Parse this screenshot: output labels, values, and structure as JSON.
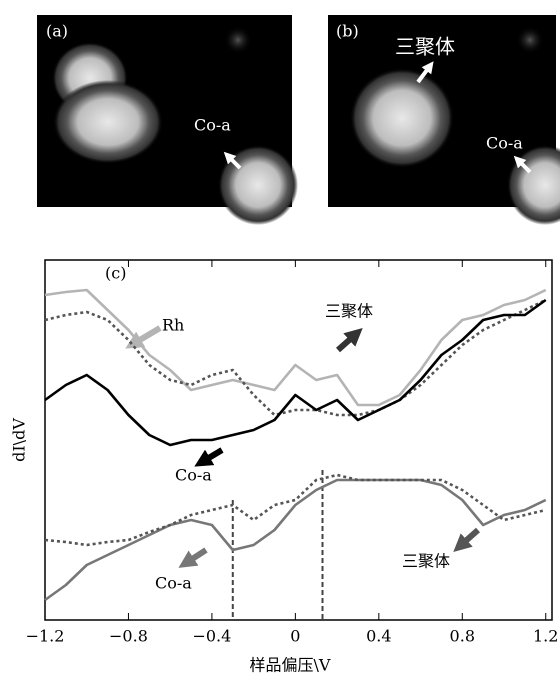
{
  "images": [
    {
      "label": "(a)",
      "texts": [
        "Co-a"
      ]
    },
    {
      "label": "(b)",
      "texts": [
        "三聚体",
        "Co-a"
      ]
    }
  ],
  "chart_data": {
    "type": "line",
    "label": "(c)",
    "xlabel": "样品偏压\\V",
    "ylabel": "dI\\dV",
    "x": [
      -1.2,
      -1.1,
      -1.0,
      -0.9,
      -0.8,
      -0.7,
      -0.6,
      -0.5,
      -0.4,
      -0.3,
      -0.2,
      -0.1,
      0,
      0.1,
      0.2,
      0.3,
      0.4,
      0.5,
      0.6,
      0.7,
      0.8,
      0.9,
      1.0,
      1.1,
      1.2
    ],
    "xlim": [
      -1.2,
      1.23
    ],
    "ylim": [
      0,
      360
    ],
    "xticks": [
      {
        "value": -1.2,
        "label": "−1.2"
      },
      {
        "value": -0.8,
        "label": "−0.8"
      },
      {
        "value": -0.4,
        "label": "−0.4"
      },
      0,
      0.4,
      0.8,
      1.2
    ],
    "markers": [
      -0.3,
      0.13
    ],
    "series": [
      {
        "name": "Rh",
        "color": "#b4b4b4",
        "dashed": false,
        "values": [
          325,
          328,
          330,
          310,
          290,
          265,
          250,
          230,
          235,
          240,
          235,
          230,
          255,
          240,
          245,
          215,
          215,
          225,
          250,
          280,
          300,
          305,
          315,
          320,
          330
        ]
      },
      {
        "name": "三聚体",
        "color": "#555555",
        "dashed": true,
        "values": [
          300,
          305,
          308,
          300,
          280,
          255,
          240,
          235,
          245,
          250,
          225,
          205,
          210,
          210,
          205,
          205,
          210,
          220,
          235,
          255,
          275,
          290,
          300,
          310,
          320
        ]
      },
      {
        "name": "Co-a",
        "color": "#000000",
        "dashed": false,
        "values": [
          220,
          235,
          245,
          230,
          205,
          185,
          175,
          180,
          180,
          185,
          190,
          200,
          225,
          210,
          220,
          200,
          210,
          220,
          240,
          265,
          280,
          300,
          305,
          305,
          320
        ]
      },
      {
        "name": "Co-a",
        "color": "#777777",
        "dashed": false,
        "values": [
          20,
          35,
          55,
          65,
          75,
          85,
          95,
          100,
          95,
          70,
          75,
          90,
          115,
          130,
          140,
          140,
          140,
          140,
          140,
          135,
          120,
          95,
          105,
          110,
          120
        ]
      },
      {
        "name": "三聚体",
        "color": "#555555",
        "dashed": true,
        "values": [
          80,
          78,
          75,
          78,
          80,
          88,
          95,
          105,
          110,
          115,
          100,
          115,
          120,
          140,
          145,
          140,
          140,
          140,
          140,
          140,
          130,
          115,
          100,
          105,
          110
        ]
      }
    ]
  }
}
